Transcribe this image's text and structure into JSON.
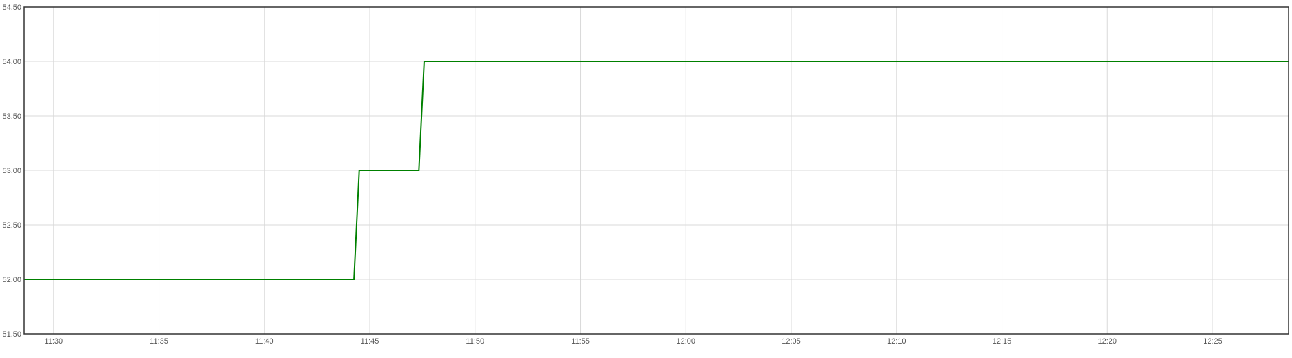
{
  "chart_data": {
    "type": "line",
    "title": "",
    "xlabel": "",
    "ylabel": "",
    "xlim": [
      "11:28:36",
      "12:28:36"
    ],
    "ylim": [
      51.5,
      54.5
    ],
    "grid": true,
    "legend": "none",
    "x_ticks": [
      "11:30",
      "11:35",
      "11:40",
      "11:45",
      "11:50",
      "11:55",
      "12:00",
      "12:05",
      "12:10",
      "12:15",
      "12:20",
      "12:25"
    ],
    "y_ticks": [
      "51.50",
      "52.00",
      "52.50",
      "53.00",
      "53.50",
      "54.00",
      "54.50"
    ],
    "series": [
      {
        "color": "#008000",
        "points": [
          {
            "x": "11:28:36",
            "y": 52.0
          },
          {
            "x": "11:44:15",
            "y": 52.0
          },
          {
            "x": "11:44:30",
            "y": 53.0
          },
          {
            "x": "11:47:20",
            "y": 53.0
          },
          {
            "x": "11:47:35",
            "y": 54.0
          },
          {
            "x": "12:28:36",
            "y": 54.0
          }
        ]
      }
    ]
  }
}
